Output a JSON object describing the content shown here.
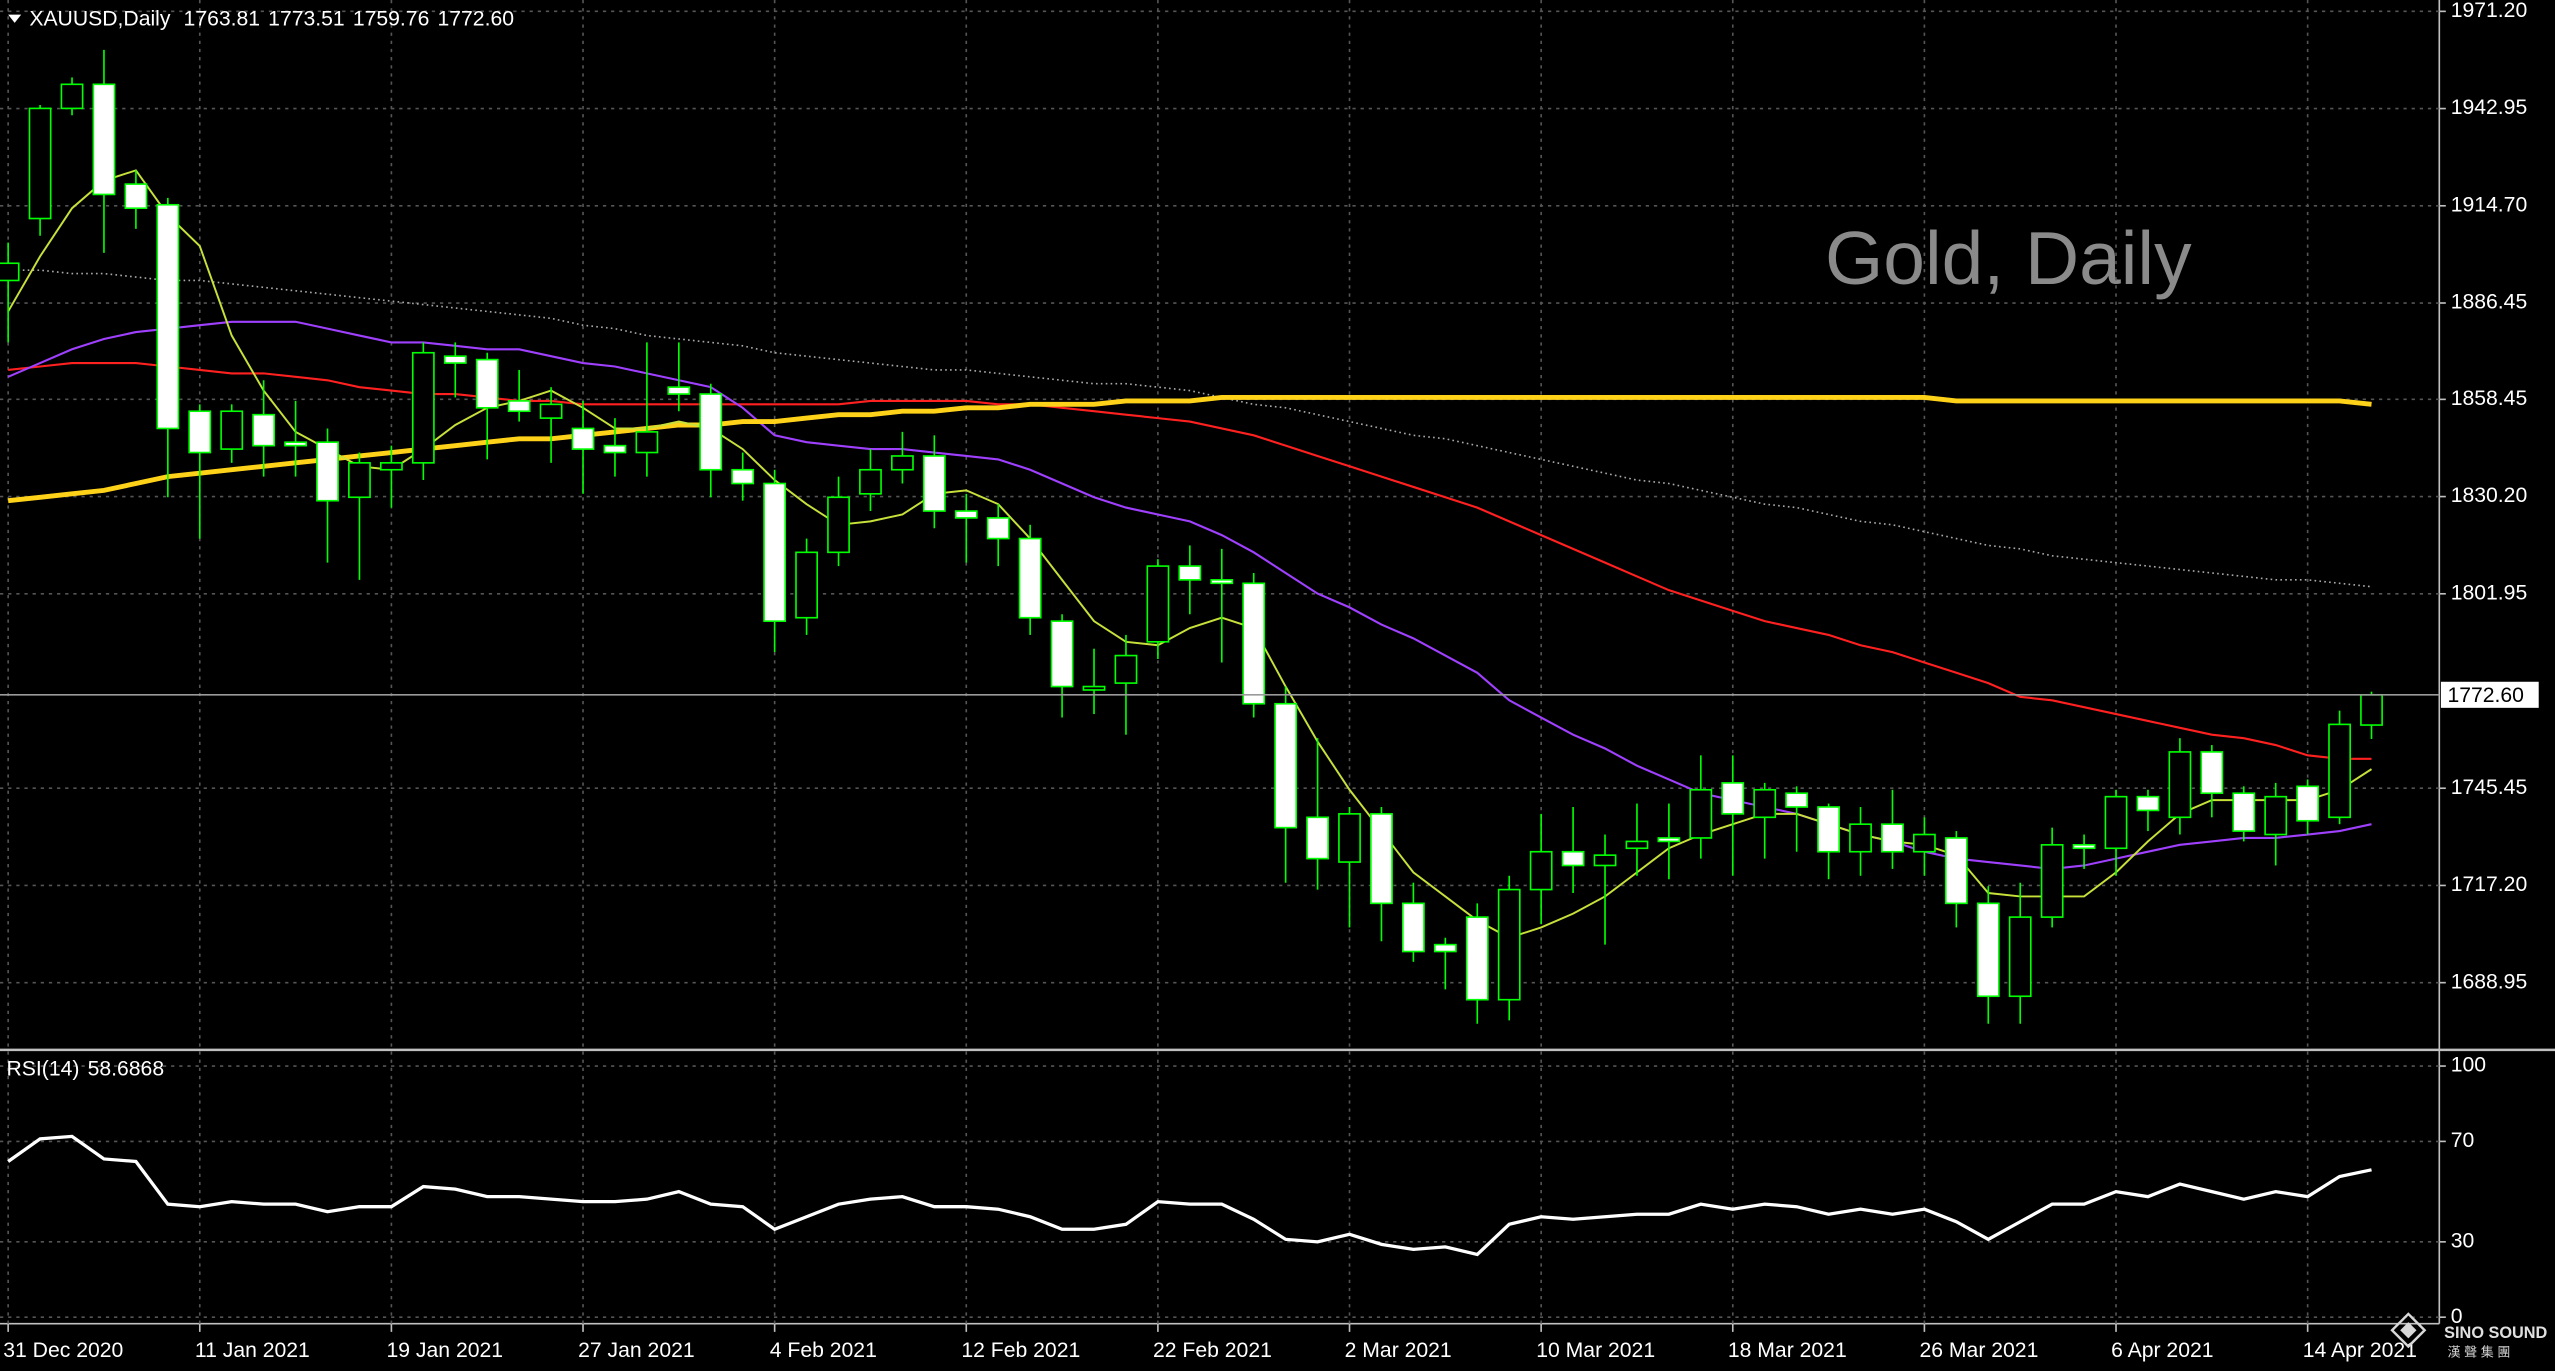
{
  "chart_data": [
    {
      "type": "candlestick",
      "title": "Gold, Daily",
      "symbol": "XAUUSD,Daily",
      "header_ohlc_labels": [
        "1763.81",
        "1773.51",
        "1759.76",
        "1772.60"
      ],
      "categories": [
        "31 Dec 2020",
        null,
        null,
        null,
        null,
        null,
        "11 Jan 2021",
        null,
        null,
        null,
        null,
        null,
        "19 Jan 2021",
        null,
        null,
        null,
        null,
        null,
        "27 Jan 2021",
        null,
        null,
        null,
        null,
        null,
        "4 Feb 2021",
        null,
        null,
        null,
        null,
        null,
        "12 Feb 2021",
        null,
        null,
        null,
        null,
        null,
        "22 Feb 2021",
        null,
        null,
        null,
        null,
        null,
        "2 Mar 2021",
        null,
        null,
        null,
        null,
        null,
        "10 Mar 2021",
        null,
        null,
        null,
        null,
        null,
        "18 Mar 2021",
        null,
        null,
        null,
        null,
        null,
        "26 Mar 2021",
        null,
        null,
        null,
        null,
        null,
        "6 Apr 2021",
        null,
        null,
        null,
        null,
        null,
        "14 Apr 2021",
        null,
        null
      ],
      "open": [
        1893,
        1911,
        1943,
        1950,
        1921,
        1915,
        1855,
        1844,
        1854,
        1846,
        1846,
        1830,
        1838,
        1840,
        1871,
        1870,
        1858,
        1853,
        1850,
        1845,
        1843,
        1862,
        1860,
        1838,
        1834,
        1795,
        1814,
        1831,
        1838,
        1842,
        1826,
        1824,
        1818,
        1794,
        1774,
        1776,
        1788,
        1810,
        1806,
        1805,
        1770,
        1737,
        1724,
        1738,
        1712,
        1700,
        1708,
        1684,
        1716,
        1727,
        1723,
        1728,
        1731,
        1731,
        1747,
        1737,
        1744,
        1740,
        1727,
        1735,
        1727,
        1731,
        1712,
        1685,
        1708,
        1729,
        1728,
        1743,
        1737,
        1756,
        1744,
        1732,
        1746,
        1737,
        1763.81
      ],
      "high": [
        1904,
        1944,
        1952,
        1960,
        1925,
        1917,
        1857,
        1857,
        1864,
        1858,
        1850,
        1843,
        1845,
        1875,
        1875,
        1872,
        1867,
        1862,
        1858,
        1853,
        1875,
        1875,
        1863,
        1843,
        1838,
        1818,
        1836,
        1844,
        1849,
        1848,
        1831,
        1828,
        1822,
        1796,
        1786,
        1790,
        1812,
        1816,
        1815,
        1808,
        1775,
        1760,
        1740,
        1740,
        1718,
        1702,
        1712,
        1720,
        1738,
        1740,
        1732,
        1741,
        1741,
        1755,
        1755,
        1747,
        1746,
        1741,
        1740,
        1745,
        1737,
        1733,
        1717,
        1718,
        1734,
        1732,
        1745,
        1745,
        1760,
        1758,
        1746,
        1747,
        1748,
        1768,
        1773.51
      ],
      "low": [
        1875,
        1906,
        1941,
        1901,
        1908,
        1830,
        1818,
        1840,
        1836,
        1836,
        1811,
        1806,
        1827,
        1835,
        1859,
        1841,
        1852,
        1840,
        1831,
        1836,
        1836,
        1855,
        1830,
        1829,
        1785,
        1790,
        1810,
        1826,
        1834,
        1821,
        1811,
        1810,
        1790,
        1766,
        1767,
        1761,
        1783,
        1796,
        1782,
        1766,
        1718,
        1716,
        1705,
        1701,
        1695,
        1687,
        1677,
        1678,
        1706,
        1715,
        1700,
        1720,
        1719,
        1725,
        1720,
        1725,
        1727,
        1719,
        1720,
        1722,
        1720,
        1705,
        1677,
        1677,
        1705,
        1722,
        1720,
        1733,
        1732,
        1737,
        1730,
        1723,
        1732,
        1735,
        1759.76
      ],
      "close": [
        1898,
        1943,
        1950,
        1918,
        1914,
        1850,
        1843,
        1855,
        1845,
        1845,
        1829,
        1840,
        1840,
        1872,
        1869,
        1856,
        1855,
        1857,
        1844,
        1843,
        1849,
        1860,
        1838,
        1834,
        1794,
        1814,
        1830,
        1838,
        1842,
        1826,
        1824,
        1818,
        1795,
        1775,
        1775,
        1784,
        1810,
        1806,
        1805,
        1770,
        1734,
        1725,
        1738,
        1712,
        1698,
        1698,
        1684,
        1716,
        1727,
        1723,
        1726,
        1730,
        1730,
        1745,
        1738,
        1745,
        1740,
        1727,
        1735,
        1727,
        1732,
        1712,
        1685,
        1708,
        1729,
        1728,
        1743,
        1739,
        1756,
        1744,
        1733,
        1743,
        1736,
        1764,
        1772.6
      ],
      "up_color": "#000000",
      "down_color": "#ffffff",
      "wick_color": "#00ff00",
      "lines": [
        {
          "color": "#aaaaaa",
          "width": 1,
          "dash": true,
          "values": [
            1896,
            1896,
            1895,
            1895,
            1894,
            1893,
            1893,
            1892,
            1891,
            1890,
            1889,
            1888,
            1887,
            1886,
            1885,
            1884,
            1883,
            1882,
            1880,
            1879,
            1877,
            1876,
            1875,
            1874,
            1872,
            1871,
            1870,
            1869,
            1868,
            1867,
            1867,
            1866,
            1865,
            1864,
            1863,
            1863,
            1862,
            1861,
            1859,
            1857,
            1856,
            1854,
            1852,
            1850,
            1848,
            1847,
            1845,
            1843,
            1841,
            1839,
            1837,
            1835,
            1834,
            1832,
            1830,
            1828,
            1827,
            1825,
            1823,
            1822,
            1820,
            1818,
            1816,
            1815,
            1813,
            1812,
            1811,
            1810,
            1809,
            1808,
            1807,
            1806,
            1806,
            1805,
            1804
          ]
        },
        {
          "color": "#ff2020",
          "width": 1.3,
          "dash": false,
          "values": [
            1867,
            1868,
            1869,
            1869,
            1869,
            1868,
            1867,
            1866,
            1866,
            1865,
            1864,
            1862,
            1861,
            1860,
            1860,
            1859,
            1858,
            1858,
            1857,
            1857,
            1857,
            1857,
            1857,
            1857,
            1857,
            1857,
            1857,
            1858,
            1858,
            1858,
            1858,
            1857,
            1857,
            1856,
            1855,
            1854,
            1853,
            1852,
            1850,
            1848,
            1845,
            1842,
            1839,
            1836,
            1833,
            1830,
            1827,
            1823,
            1819,
            1815,
            1811,
            1807,
            1803,
            1800,
            1797,
            1794,
            1792,
            1790,
            1787,
            1785,
            1782,
            1779,
            1776,
            1772,
            1771,
            1769,
            1767,
            1765,
            1763,
            1761,
            1760,
            1758,
            1755,
            1754,
            1754
          ]
        },
        {
          "color": "#a040ff",
          "width": 1.3,
          "dash": false,
          "values": [
            1865,
            1869,
            1873,
            1876,
            1878,
            1879,
            1880,
            1881,
            1881,
            1881,
            1879,
            1877,
            1875,
            1875,
            1874,
            1873,
            1873,
            1871,
            1869,
            1868,
            1866,
            1864,
            1862,
            1856,
            1848,
            1846,
            1845,
            1844,
            1844,
            1843,
            1842,
            1841,
            1838,
            1834,
            1830,
            1827,
            1825,
            1823,
            1819,
            1814,
            1808,
            1802,
            1798,
            1793,
            1789,
            1784,
            1779,
            1771,
            1766,
            1761,
            1757,
            1752,
            1748,
            1744,
            1742,
            1740,
            1738,
            1735,
            1732,
            1730,
            1727,
            1725,
            1724,
            1723,
            1722,
            1723,
            1725,
            1727,
            1729,
            1730,
            1731,
            1731,
            1732,
            1733,
            1735
          ]
        },
        {
          "color": "#ffd21a",
          "width": 3,
          "dash": false,
          "values": [
            1829,
            1830,
            1831,
            1832,
            1834,
            1836,
            1837,
            1838,
            1839,
            1840,
            1841,
            1842,
            1843,
            1844,
            1845,
            1846,
            1847,
            1847,
            1848,
            1849,
            1850,
            1851,
            1851,
            1852,
            1852,
            1853,
            1854,
            1854,
            1855,
            1855,
            1856,
            1856,
            1857,
            1857,
            1857,
            1858,
            1858,
            1858,
            1859,
            1859,
            1859,
            1859,
            1859,
            1859,
            1859,
            1859,
            1859,
            1859,
            1859,
            1859,
            1859,
            1859,
            1859,
            1859,
            1859,
            1859,
            1859,
            1859,
            1859,
            1859,
            1859,
            1858,
            1858,
            1858,
            1858,
            1858,
            1858,
            1858,
            1858,
            1858,
            1858,
            1858,
            1858,
            1858,
            1857
          ]
        },
        {
          "color": "#c8e03a",
          "width": 1.2,
          "dash": false,
          "values": [
            1884,
            1900,
            1914,
            1922,
            1925,
            1912,
            1903,
            1877,
            1861,
            1849,
            1844,
            1839,
            1838,
            1844,
            1851,
            1856,
            1858,
            1861,
            1856,
            1850,
            1850,
            1852,
            1850,
            1844,
            1835,
            1828,
            1822,
            1823,
            1825,
            1831,
            1832,
            1828,
            1818,
            1806,
            1794,
            1788,
            1787,
            1792,
            1795,
            1792,
            1775,
            1759,
            1745,
            1733,
            1721,
            1714,
            1707,
            1702,
            1705,
            1709,
            1714,
            1721,
            1728,
            1732,
            1735,
            1738,
            1738,
            1735,
            1732,
            1730,
            1729,
            1726,
            1715,
            1714,
            1714,
            1714,
            1721,
            1730,
            1738,
            1742,
            1742,
            1742,
            1742,
            1745,
            1751
          ]
        }
      ],
      "ylim": [
        1669.9,
        1974.5
      ],
      "yticks": [
        {
          "value": 1971.2,
          "label": "1971.20"
        },
        1942.95,
        {
          "value": 1914.7,
          "label": "1914.70"
        },
        1886.45,
        1858.45,
        {
          "value": 1830.2,
          "label": "1830.20"
        },
        1801.95,
        1745.45,
        {
          "value": 1717.2,
          "label": "1717.20"
        },
        1688.95
      ],
      "grid": true
    },
    {
      "type": "line",
      "title": "RSI(14)",
      "color": "#ffffff",
      "values": [
        62,
        71,
        72,
        63,
        62,
        45,
        44,
        46,
        45,
        45,
        42,
        44,
        44,
        52,
        51,
        48,
        48,
        47,
        46,
        46,
        47,
        50,
        45,
        44,
        35,
        40,
        45,
        47,
        48,
        44,
        44,
        43,
        40,
        35,
        35,
        37,
        46,
        45,
        45,
        39,
        31,
        30,
        33,
        29,
        27,
        28,
        25,
        37,
        40,
        39,
        40,
        41,
        41,
        45,
        43,
        45,
        44,
        41,
        43,
        41,
        43,
        38,
        31,
        38,
        45,
        45,
        50,
        48,
        53,
        50,
        47,
        50,
        48,
        56,
        58.6868
      ],
      "ylim": [
        -2.6,
        105.8
      ],
      "yticks": [
        100,
        70,
        30,
        0
      ],
      "grid": true
    }
  ],
  "logo": {
    "text": "SINO SOUND",
    "subtext": "漢 聲 集 團"
  }
}
